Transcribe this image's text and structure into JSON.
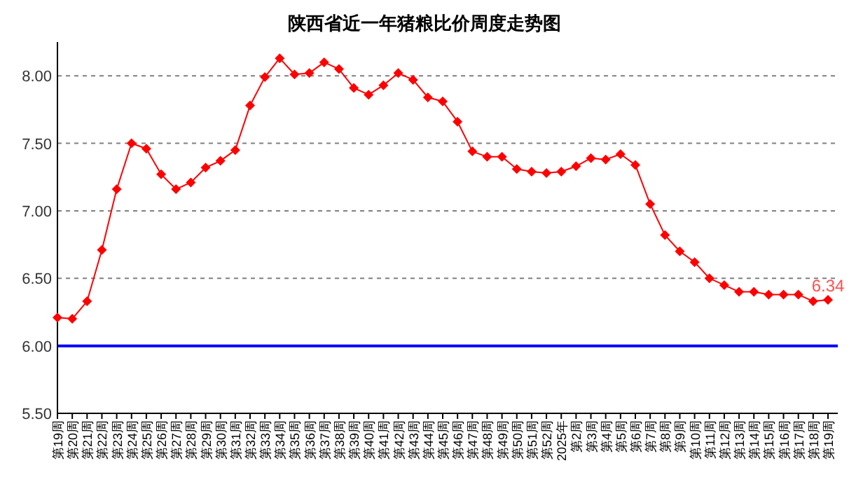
{
  "chart_data": {
    "type": "line",
    "title": "陕西省近一年猪粮比价周度走势图",
    "categories": [
      "第19周",
      "第20周",
      "第21周",
      "第22周",
      "第23周",
      "第24周",
      "第25周",
      "第26周",
      "第27周",
      "第28周",
      "第29周",
      "第30周",
      "第31周",
      "第32周",
      "第33周",
      "第34周",
      "第35周",
      "第36周",
      "第37周",
      "第38周",
      "第39周",
      "第40周",
      "第41周",
      "第42周",
      "第43周",
      "第44周",
      "第45周",
      "第46周",
      "第47周",
      "第48周",
      "第49周",
      "第50周",
      "第51周",
      "第52周",
      "2025年",
      "第2周",
      "第3周",
      "第4周",
      "第5周",
      "第6周",
      "第7周",
      "第8周",
      "第9周",
      "第10周",
      "第11周",
      "第12周",
      "第13周",
      "第14周",
      "第15周",
      "第16周",
      "第17周",
      "第18周",
      "第19周"
    ],
    "series": [
      {
        "color": "#ff0000",
        "values": [
          6.21,
          6.2,
          6.33,
          6.71,
          7.16,
          7.5,
          7.46,
          7.27,
          7.16,
          7.21,
          7.32,
          7.37,
          7.45,
          7.78,
          7.99,
          8.13,
          8.01,
          8.02,
          8.1,
          8.05,
          7.91,
          7.86,
          7.93,
          8.02,
          7.97,
          7.84,
          7.81,
          7.66,
          7.44,
          7.4,
          7.4,
          7.31,
          7.29,
          7.28,
          7.29,
          7.33,
          7.39,
          7.38,
          7.42,
          7.34,
          7.05,
          6.82,
          6.7,
          6.62,
          6.5,
          6.45,
          6.4,
          6.4,
          6.38,
          6.38,
          6.38,
          6.33,
          6.34
        ],
        "value_labels": [
          null,
          null,
          null,
          null,
          null,
          null,
          null,
          null,
          null,
          null,
          null,
          null,
          null,
          null,
          null,
          null,
          null,
          null,
          null,
          null,
          null,
          null,
          null,
          null,
          null,
          null,
          null,
          null,
          null,
          null,
          null,
          null,
          null,
          null,
          null,
          null,
          null,
          null,
          null,
          null,
          null,
          null,
          null,
          null,
          null,
          null,
          null,
          null,
          null,
          null,
          null,
          null,
          "6.34"
        ]
      }
    ],
    "ylim": [
      5.5,
      8.25
    ],
    "yticks": [
      {
        "value": 5.5,
        "label": "5.50"
      },
      {
        "value": 6,
        "label": "6.00"
      },
      {
        "value": 6.5,
        "label": "6.50"
      },
      {
        "value": 7,
        "label": "7.00"
      },
      {
        "value": 7.5,
        "label": "7.50"
      },
      {
        "value": 8,
        "label": "8.00"
      }
    ],
    "grid": "y",
    "marker": "diamond",
    "line_style": "solid",
    "ref_lines": [
      {
        "axis": "y",
        "value": 6,
        "color": "#0000ff"
      }
    ]
  }
}
